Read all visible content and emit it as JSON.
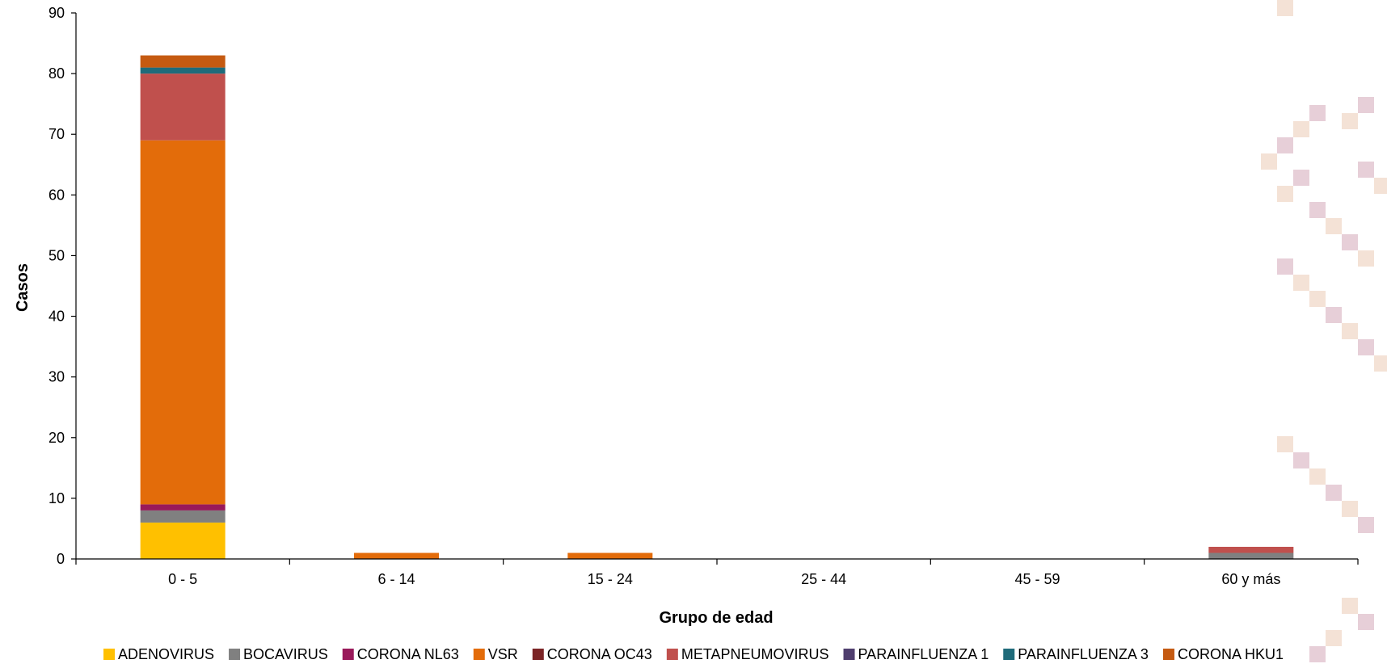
{
  "chart_data": {
    "type": "bar",
    "stacked": true,
    "title": "",
    "xlabel": "Grupo de edad",
    "ylabel": "Casos",
    "ylim": [
      0,
      90
    ],
    "yticks": [
      0,
      10,
      20,
      30,
      40,
      50,
      60,
      70,
      80,
      90
    ],
    "categories": [
      "0 - 5",
      "6 - 14",
      "15 - 24",
      "25 - 44",
      "45 - 59",
      "60 y más"
    ],
    "grid": false,
    "legend_position": "bottom",
    "series": [
      {
        "name": "ADENOVIRUS",
        "color": "#FFC000",
        "values": [
          6,
          0,
          0,
          0,
          0,
          0
        ]
      },
      {
        "name": "BOCAVIRUS",
        "color": "#808080",
        "values": [
          2,
          0,
          0,
          0,
          0,
          1
        ]
      },
      {
        "name": "CORONA NL63",
        "color": "#99195A",
        "values": [
          1,
          0,
          0,
          0,
          0,
          0
        ]
      },
      {
        "name": "VSR",
        "color": "#E36C0A",
        "values": [
          60,
          1,
          1,
          0,
          0,
          0
        ]
      },
      {
        "name": "CORONA OC43",
        "color": "#7B2426",
        "values": [
          0,
          0,
          0,
          0,
          0,
          0
        ]
      },
      {
        "name": "METAPNEUMOVIRUS",
        "color": "#C0504D",
        "values": [
          11,
          0,
          0,
          0,
          0,
          1
        ]
      },
      {
        "name": "PARAINFLUENZA 1",
        "color": "#4F3E6E",
        "values": [
          0,
          0,
          0,
          0,
          0,
          0
        ]
      },
      {
        "name": "PARAINFLUENZA 3",
        "color": "#1F6B7A",
        "values": [
          1,
          0,
          0,
          0,
          0,
          0
        ]
      },
      {
        "name": "CORONA HKU1",
        "color": "#C55A11",
        "values": [
          2,
          0,
          0,
          0,
          0,
          0
        ]
      }
    ]
  }
}
